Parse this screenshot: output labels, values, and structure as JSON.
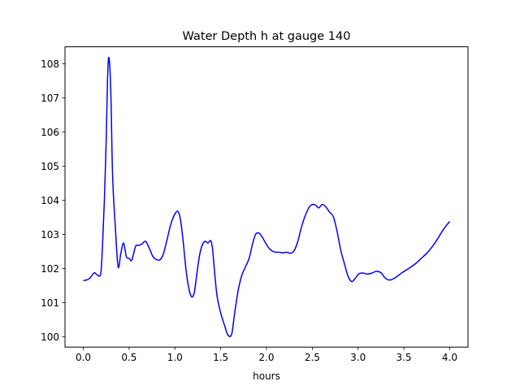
{
  "chart_data": {
    "type": "line",
    "title": "Water Depth h at gauge 140",
    "xlabel": "hours",
    "ylabel": "",
    "xlim": [
      -0.2,
      4.2
    ],
    "ylim": [
      99.7,
      108.5
    ],
    "xticks": [
      0.0,
      0.5,
      1.0,
      1.5,
      2.0,
      2.5,
      3.0,
      3.5,
      4.0
    ],
    "xtick_labels": [
      "0.0",
      "0.5",
      "1.0",
      "1.5",
      "2.0",
      "2.5",
      "3.0",
      "3.5",
      "4.0"
    ],
    "yticks": [
      100,
      101,
      102,
      103,
      104,
      105,
      106,
      107,
      108
    ],
    "ytick_labels": [
      "100",
      "101",
      "102",
      "103",
      "104",
      "105",
      "106",
      "107",
      "108"
    ],
    "grid": false,
    "series": [
      {
        "color": "#0000ff",
        "x": [
          0.0,
          0.05,
          0.08,
          0.12,
          0.15,
          0.19,
          0.21,
          0.23,
          0.25,
          0.265,
          0.28,
          0.3,
          0.32,
          0.35,
          0.38,
          0.41,
          0.44,
          0.47,
          0.5,
          0.53,
          0.57,
          0.6,
          0.64,
          0.68,
          0.72,
          0.76,
          0.79,
          0.83,
          0.87,
          0.91,
          0.95,
          0.99,
          1.03,
          1.06,
          1.09,
          1.12,
          1.15,
          1.18,
          1.21,
          1.24,
          1.27,
          1.3,
          1.33,
          1.36,
          1.39,
          1.41,
          1.43,
          1.46,
          1.5,
          1.54,
          1.58,
          1.62,
          1.65,
          1.69,
          1.73,
          1.77,
          1.81,
          1.85,
          1.88,
          1.91,
          1.94,
          1.98,
          2.02,
          2.06,
          2.1,
          2.14,
          2.18,
          2.22,
          2.26,
          2.3,
          2.34,
          2.38,
          2.43,
          2.48,
          2.53,
          2.57,
          2.61,
          2.65,
          2.69,
          2.73,
          2.77,
          2.81,
          2.85,
          2.89,
          2.93,
          2.97,
          3.01,
          3.05,
          3.1,
          3.15,
          3.2,
          3.25,
          3.29,
          3.33,
          3.37,
          3.42,
          3.48,
          3.55,
          3.62,
          3.69,
          3.76,
          3.82,
          3.87,
          3.92,
          3.96,
          4.0
        ],
        "y": [
          101.65,
          101.68,
          101.75,
          101.88,
          101.82,
          101.85,
          102.7,
          104.0,
          105.8,
          107.6,
          108.18,
          107.2,
          104.7,
          103.2,
          102.05,
          102.45,
          102.75,
          102.35,
          102.3,
          102.25,
          102.65,
          102.68,
          102.72,
          102.8,
          102.6,
          102.35,
          102.28,
          102.25,
          102.4,
          102.8,
          103.25,
          103.55,
          103.68,
          103.45,
          102.8,
          102.0,
          101.45,
          101.18,
          101.28,
          101.85,
          102.4,
          102.7,
          102.8,
          102.75,
          102.82,
          102.6,
          102.0,
          101.2,
          100.7,
          100.35,
          100.05,
          100.08,
          100.65,
          101.35,
          101.8,
          102.05,
          102.3,
          102.75,
          103.0,
          103.05,
          102.98,
          102.8,
          102.62,
          102.52,
          102.48,
          102.48,
          102.46,
          102.48,
          102.45,
          102.52,
          102.78,
          103.2,
          103.6,
          103.85,
          103.87,
          103.78,
          103.88,
          103.8,
          103.65,
          103.52,
          103.1,
          102.55,
          102.15,
          101.78,
          101.62,
          101.72,
          101.85,
          101.87,
          101.84,
          101.87,
          101.92,
          101.88,
          101.74,
          101.67,
          101.68,
          101.76,
          101.88,
          102.0,
          102.13,
          102.3,
          102.48,
          102.68,
          102.88,
          103.1,
          103.25,
          103.38
        ]
      }
    ]
  }
}
